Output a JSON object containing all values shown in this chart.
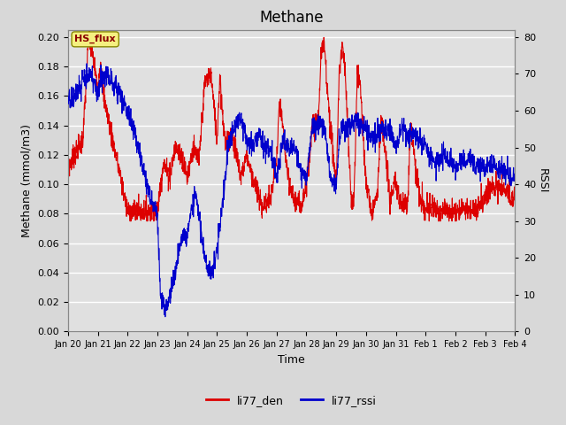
{
  "title": "Methane",
  "xlabel": "Time",
  "ylabel_left": "Methane (mmol/m3)",
  "ylabel_right": "RSSI",
  "ylim_left": [
    0.0,
    0.205
  ],
  "ylim_right": [
    0,
    82
  ],
  "yticks_left": [
    0.0,
    0.02,
    0.04,
    0.06,
    0.08,
    0.1,
    0.12,
    0.14,
    0.16,
    0.18,
    0.2
  ],
  "yticks_right": [
    0,
    10,
    20,
    30,
    40,
    50,
    60,
    70,
    80
  ],
  "color_red": "#DD0000",
  "color_blue": "#0000CC",
  "legend_labels": [
    "li77_den",
    "li77_rssi"
  ],
  "annotation_text": "HS_flux",
  "bg_color": "#E0E0E0",
  "grid_color": "#FFFFFF",
  "xtick_labels": [
    "Jan 20",
    "Jan 21",
    "Jan 22",
    "Jan 23",
    "Jan 24",
    "Jan 25",
    "Jan 26",
    "Jan 27",
    "Jan 28",
    "Jan 29",
    "Jan 30",
    "Jan 31",
    "Feb 1",
    "Feb 2",
    "Feb 3",
    "Feb 4"
  ],
  "title_fontsize": 12,
  "label_fontsize": 9,
  "tick_fontsize": 8,
  "legend_fontsize": 9,
  "red_knots_x": [
    0,
    0.2,
    0.5,
    0.7,
    0.85,
    1.0,
    1.1,
    1.2,
    1.5,
    2.0,
    2.1,
    2.2,
    2.5,
    3.0,
    3.2,
    3.4,
    3.6,
    3.8,
    4.0,
    4.2,
    4.4,
    4.5,
    4.6,
    4.8,
    5.0,
    5.1,
    5.2,
    5.3,
    5.5,
    5.8,
    6.0,
    6.2,
    6.5,
    6.8,
    7.0,
    7.1,
    7.2,
    7.4,
    7.6,
    7.8,
    8.0,
    8.2,
    8.4,
    8.5,
    8.6,
    8.8,
    9.0,
    9.1,
    9.2,
    9.3,
    9.5,
    9.6,
    9.7,
    9.8,
    10.0,
    10.2,
    10.4,
    10.5,
    10.6,
    10.8,
    11.0,
    11.2,
    11.4,
    11.5,
    11.8,
    12.0,
    12.2,
    12.5,
    13.0,
    13.2,
    13.5,
    13.8,
    14.0,
    14.2,
    14.5,
    15.0
  ],
  "red_knots_y": [
    0.11,
    0.12,
    0.13,
    0.2,
    0.185,
    0.165,
    0.185,
    0.16,
    0.13,
    0.082,
    0.082,
    0.082,
    0.082,
    0.082,
    0.115,
    0.105,
    0.125,
    0.12,
    0.105,
    0.125,
    0.115,
    0.145,
    0.17,
    0.175,
    0.13,
    0.175,
    0.145,
    0.125,
    0.135,
    0.105,
    0.12,
    0.105,
    0.085,
    0.09,
    0.115,
    0.155,
    0.14,
    0.1,
    0.09,
    0.085,
    0.1,
    0.14,
    0.145,
    0.19,
    0.195,
    0.14,
    0.1,
    0.175,
    0.195,
    0.175,
    0.09,
    0.09,
    0.175,
    0.17,
    0.1,
    0.08,
    0.1,
    0.145,
    0.13,
    0.09,
    0.1,
    0.085,
    0.09,
    0.14,
    0.09,
    0.082,
    0.085,
    0.082,
    0.082,
    0.085,
    0.082,
    0.085,
    0.09,
    0.1,
    0.098,
    0.09
  ],
  "blue_knots_x": [
    0,
    0.2,
    0.5,
    0.7,
    0.85,
    1.0,
    1.1,
    1.3,
    1.5,
    1.7,
    2.0,
    2.2,
    2.5,
    2.8,
    3.0,
    3.1,
    3.2,
    3.3,
    3.5,
    3.7,
    3.8,
    4.0,
    4.2,
    4.3,
    4.5,
    4.6,
    4.8,
    5.0,
    5.2,
    5.4,
    5.6,
    5.8,
    6.0,
    6.2,
    6.4,
    6.6,
    6.8,
    7.0,
    7.2,
    7.4,
    7.6,
    7.8,
    8.0,
    8.2,
    8.4,
    8.5,
    8.6,
    8.8,
    9.0,
    9.1,
    9.2,
    9.4,
    9.6,
    9.8,
    10.0,
    10.2,
    10.4,
    10.6,
    10.8,
    11.0,
    11.2,
    11.4,
    11.6,
    11.8,
    12.0,
    12.2,
    12.4,
    12.6,
    12.8,
    13.0,
    13.2,
    13.5,
    13.8,
    14.0,
    14.2,
    14.5,
    14.8,
    15.0
  ],
  "blue_knots_y": [
    63,
    64,
    68,
    70,
    68,
    65,
    68,
    70,
    68,
    65,
    60,
    55,
    45,
    35,
    32,
    10,
    7,
    5,
    13,
    20,
    25,
    26,
    35,
    37,
    25,
    20,
    15,
    22,
    36,
    52,
    56,
    58,
    52,
    50,
    54,
    50,
    50,
    42,
    52,
    50,
    50,
    44,
    42,
    55,
    57,
    57,
    55,
    42,
    40,
    52,
    55,
    56,
    57,
    56,
    55,
    53,
    54,
    55,
    55,
    50,
    55,
    53,
    54,
    52,
    50,
    47,
    46,
    48,
    46,
    45,
    46,
    47,
    45,
    44,
    46,
    44,
    42,
    41
  ]
}
